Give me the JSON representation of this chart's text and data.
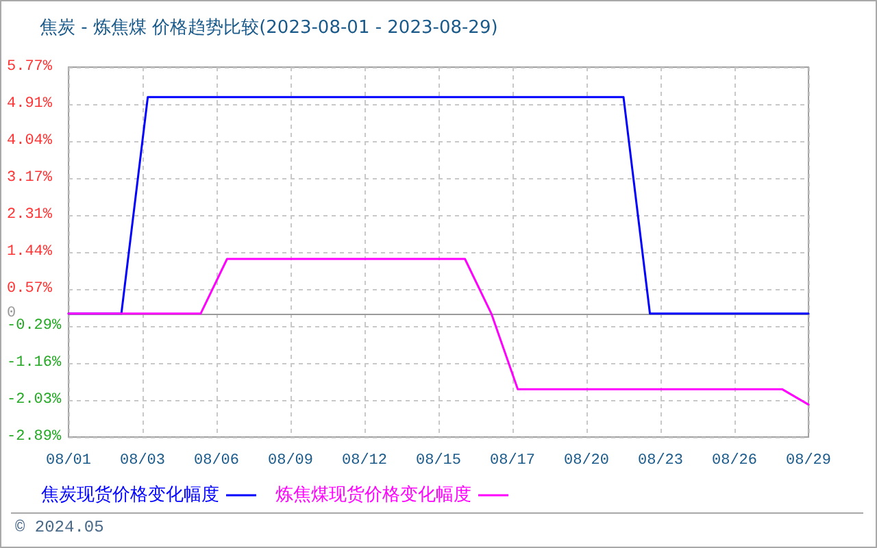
{
  "chart_data": {
    "type": "line",
    "title": "焦炭 - 炼焦煤 价格趋势比较(2023-08-01 - 2023-08-29)",
    "x": [
      "2023-08-01",
      "2023-08-02",
      "2023-08-03",
      "2023-08-04",
      "2023-08-05",
      "2023-08-06",
      "2023-08-07",
      "2023-08-08",
      "2023-08-09",
      "2023-08-10",
      "2023-08-11",
      "2023-08-12",
      "2023-08-13",
      "2023-08-14",
      "2023-08-15",
      "2023-08-16",
      "2023-08-17",
      "2023-08-18",
      "2023-08-19",
      "2023-08-20",
      "2023-08-21",
      "2023-08-22",
      "2023-08-23",
      "2023-08-24",
      "2023-08-25",
      "2023-08-26",
      "2023-08-27",
      "2023-08-28",
      "2023-08-29"
    ],
    "series": [
      {
        "name": "焦炭现货价格变化幅度",
        "color": "#0000ff",
        "values": [
          0,
          0,
          0,
          5.07,
          5.07,
          5.07,
          5.07,
          5.07,
          5.07,
          5.07,
          5.07,
          5.07,
          5.07,
          5.07,
          5.07,
          5.07,
          5.07,
          5.07,
          5.07,
          5.07,
          5.07,
          5.07,
          0,
          0,
          0,
          0,
          0,
          0,
          0
        ]
      },
      {
        "name": "炼焦煤现货价格变化幅度",
        "color": "#ff00ff",
        "values": [
          0,
          0,
          0,
          0,
          0,
          0,
          1.28,
          1.28,
          1.28,
          1.28,
          1.28,
          1.28,
          1.28,
          1.28,
          1.28,
          1.28,
          0,
          -1.77,
          -1.77,
          -1.77,
          -1.77,
          -1.77,
          -1.77,
          -1.77,
          -1.77,
          -1.77,
          -1.77,
          -1.77,
          -2.13
        ]
      }
    ],
    "xlim": [
      "2023-08-01",
      "2023-08-29"
    ],
    "xticks": [
      {
        "value": "2023-08-01",
        "label": "08/01"
      },
      {
        "value": "2023-08-03T19:12",
        "label": "08/03"
      },
      {
        "value": "2023-08-06T14:24",
        "label": "08/06"
      },
      {
        "value": "2023-08-09T09:36",
        "label": "08/09"
      },
      {
        "value": "2023-08-12T04:48",
        "label": "08/12"
      },
      {
        "value": "2023-08-15",
        "label": "08/15"
      },
      {
        "value": "2023-08-17T19:12",
        "label": "08/17"
      },
      {
        "value": "2023-08-20T14:24",
        "label": "08/20"
      },
      {
        "value": "2023-08-23T09:36",
        "label": "08/23"
      },
      {
        "value": "2023-08-26T04:48",
        "label": "08/26"
      },
      {
        "value": "2023-08-29",
        "label": "08/29"
      }
    ],
    "ylim": [
      -2.89,
      5.77
    ],
    "yticks": [
      {
        "value": 5.77,
        "label": "5.77%"
      },
      {
        "value": 4.91,
        "label": "4.91%"
      },
      {
        "value": 4.04,
        "label": "4.04%"
      },
      {
        "value": 3.17,
        "label": "3.17%"
      },
      {
        "value": 2.31,
        "label": "2.31%"
      },
      {
        "value": 1.44,
        "label": "1.44%"
      },
      {
        "value": 0.57,
        "label": "0.57%"
      },
      0,
      {
        "value": -0.29,
        "label": "-0.29%"
      },
      {
        "value": -1.16,
        "label": "-1.16%"
      },
      {
        "value": -2.03,
        "label": "-2.03%"
      },
      {
        "value": -2.89,
        "label": "-2.89%"
      }
    ],
    "grid": true,
    "legend": "bottom left",
    "marker": "none",
    "line_style": "solid",
    "annotations": [
      "© 2024.05"
    ]
  }
}
